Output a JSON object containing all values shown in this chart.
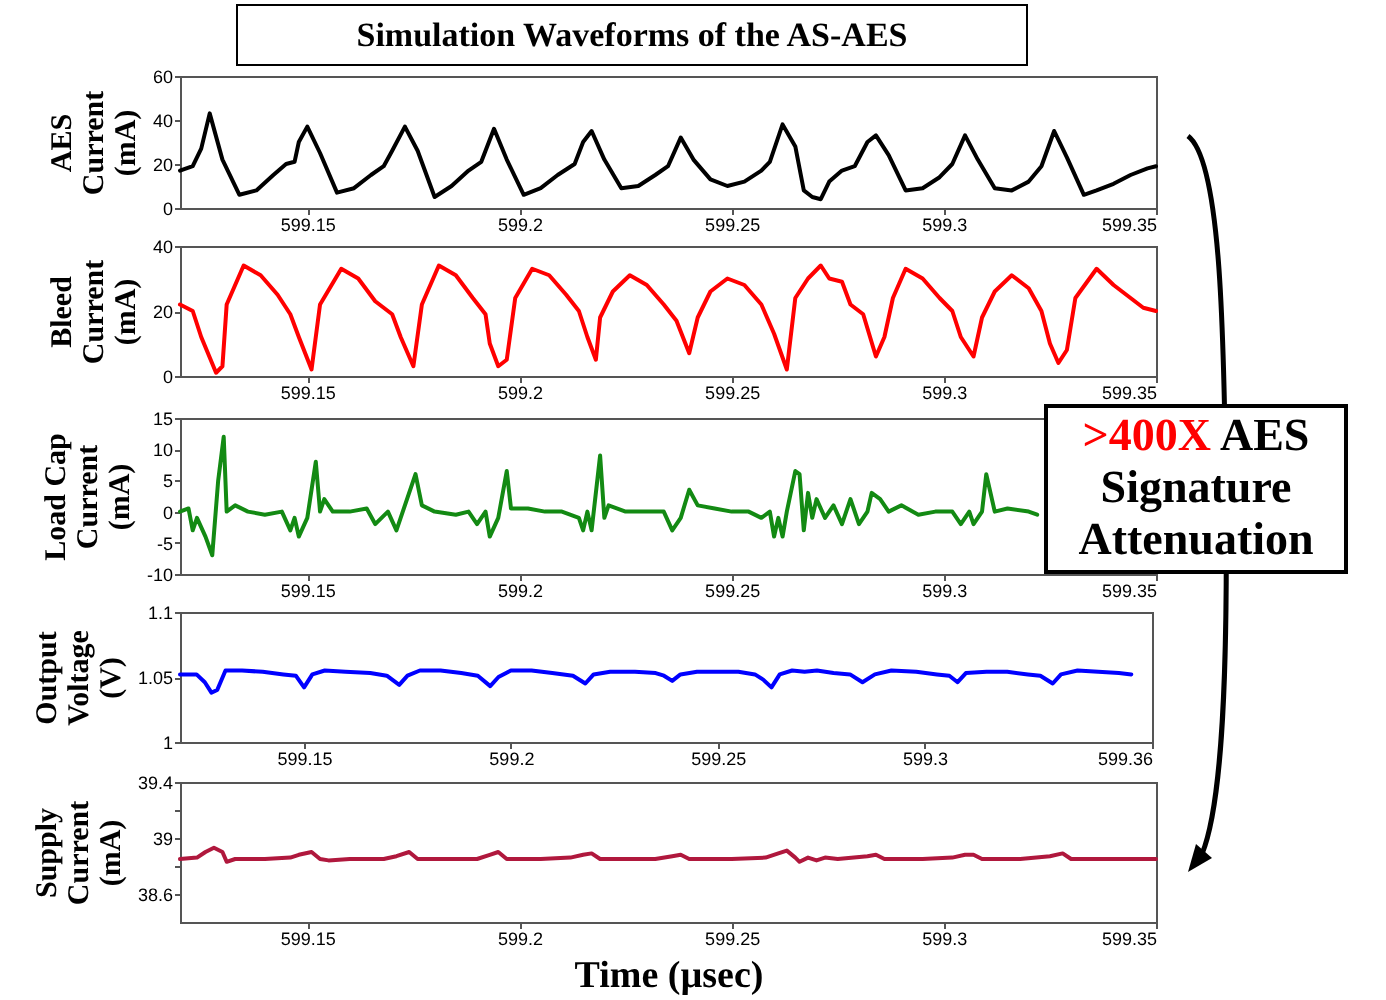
{
  "chart_data": [
    {
      "type": "line",
      "title": "Simulation Waveforms of the AS-AES",
      "annotations": [
        ">400X AES Signature Attenuation"
      ],
      "ylabel": "AES\nCurrent\n(mA)",
      "xlim": [
        599.12,
        599.35
      ],
      "xticks": [
        599.15,
        599.2,
        599.25,
        599.3,
        599.35
      ],
      "ylim": [
        0,
        60
      ],
      "yticks": [
        0,
        20,
        40,
        60
      ],
      "series": [
        {
          "color": "#000000",
          "x": [
            599.12,
            599.123,
            599.125,
            599.127,
            599.13,
            599.134,
            599.138,
            599.142,
            599.145,
            599.147,
            599.148,
            599.15,
            599.153,
            599.157,
            599.161,
            599.165,
            599.168,
            599.17,
            599.173,
            599.176,
            599.18,
            599.184,
            599.188,
            599.191,
            599.194,
            599.197,
            599.201,
            599.205,
            599.209,
            599.213,
            599.215,
            599.217,
            599.22,
            599.224,
            599.228,
            599.232,
            599.235,
            599.238,
            599.241,
            599.245,
            599.249,
            599.253,
            599.257,
            599.259,
            599.262,
            599.265,
            599.267,
            599.269,
            599.271,
            599.273,
            599.276,
            599.279,
            599.282,
            599.284,
            599.287,
            599.291,
            599.295,
            599.299,
            599.302,
            599.305,
            599.308,
            599.312,
            599.316,
            599.32,
            599.323,
            599.326,
            599.329,
            599.333,
            599.336,
            599.34,
            599.344,
            599.348,
            599.35
          ],
          "values": [
            17,
            19,
            27,
            43,
            22,
            6,
            8,
            15,
            20,
            21,
            30,
            37,
            25,
            7,
            9,
            15,
            19,
            26,
            37,
            26,
            5,
            10,
            17,
            21,
            36,
            22,
            6,
            9,
            15,
            20,
            30,
            35,
            22,
            9,
            10,
            15,
            19,
            32,
            22,
            13,
            10,
            12,
            17,
            21,
            38,
            28,
            8,
            5,
            4,
            12,
            17,
            19,
            30,
            33,
            24,
            8,
            9,
            14,
            20,
            33,
            22,
            9,
            8,
            12,
            19,
            35,
            23,
            6,
            8,
            11,
            15,
            18,
            19
          ]
        }
      ]
    },
    {
      "type": "line",
      "ylabel": "Bleed\nCurrent\n(mA)",
      "xlim": [
        599.12,
        599.35
      ],
      "xticks": [
        599.15,
        599.2,
        599.25,
        599.3,
        599.35
      ],
      "ylim": [
        0,
        40
      ],
      "yticks": [
        0,
        20,
        40
      ],
      "series": [
        {
          "color": "#ff0000",
          "x": [
            599.12,
            599.123,
            599.125,
            599.1285,
            599.13,
            599.131,
            599.135,
            599.139,
            599.143,
            599.146,
            599.148,
            599.151,
            599.153,
            599.158,
            599.162,
            599.166,
            599.17,
            599.172,
            599.175,
            599.177,
            599.181,
            599.185,
            599.189,
            599.192,
            599.193,
            599.195,
            599.197,
            599.199,
            599.203,
            599.207,
            599.211,
            599.214,
            599.216,
            599.218,
            599.219,
            599.222,
            599.226,
            599.23,
            599.234,
            599.237,
            599.24,
            599.242,
            599.245,
            599.249,
            599.253,
            599.257,
            599.26,
            599.263,
            599.265,
            599.268,
            599.271,
            599.273,
            599.276,
            599.278,
            599.281,
            599.284,
            599.286,
            599.288,
            599.291,
            599.295,
            599.299,
            599.302,
            599.304,
            599.307,
            599.309,
            599.312,
            599.316,
            599.32,
            599.323,
            599.325,
            599.327,
            599.329,
            599.331,
            599.336,
            599.34,
            599.344,
            599.347,
            599.35
          ],
          "values": [
            22,
            20,
            12,
            1,
            3,
            22,
            34,
            31,
            25,
            19,
            12,
            2,
            22,
            33,
            30,
            23,
            19,
            12,
            3,
            22,
            34,
            31,
            24,
            19,
            10,
            3,
            5,
            24,
            33,
            31,
            25,
            20,
            12,
            5,
            18,
            26,
            31,
            28,
            22,
            17,
            7,
            18,
            26,
            30,
            28,
            22,
            13,
            2,
            24,
            30,
            34,
            30,
            29,
            22,
            19,
            6,
            12,
            24,
            33,
            30,
            24,
            20,
            12,
            6,
            18,
            26,
            31,
            27,
            20,
            10,
            4,
            8,
            24,
            33,
            28,
            24,
            21,
            20
          ]
        }
      ]
    },
    {
      "type": "line",
      "ylabel": "Load Cap\nCurrent\n(mA)",
      "xlim": [
        599.12,
        599.35
      ],
      "xticks": [
        599.15,
        599.2,
        599.25,
        599.3,
        599.35
      ],
      "ylim": [
        -10,
        15
      ],
      "yticks": [
        -10,
        -5,
        0,
        5,
        10,
        15
      ],
      "series": [
        {
          "color": "#138a13",
          "x": [
            599.12,
            599.122,
            599.123,
            599.124,
            599.126,
            599.1276,
            599.129,
            599.1303,
            599.131,
            599.133,
            599.136,
            599.14,
            599.144,
            599.146,
            599.147,
            599.148,
            599.15,
            599.152,
            599.153,
            599.154,
            599.156,
            599.16,
            599.164,
            599.166,
            599.169,
            599.171,
            599.1755,
            599.177,
            599.18,
            599.185,
            599.188,
            599.19,
            599.192,
            599.193,
            599.195,
            599.197,
            599.198,
            599.202,
            599.206,
            599.21,
            599.214,
            599.215,
            599.216,
            599.217,
            599.219,
            599.22,
            599.221,
            599.225,
            599.23,
            599.234,
            599.236,
            599.238,
            599.24,
            599.242,
            599.246,
            599.25,
            599.254,
            599.257,
            599.259,
            599.26,
            599.261,
            599.262,
            599.263,
            599.265,
            599.266,
            599.267,
            599.268,
            599.269,
            599.27,
            599.272,
            599.274,
            599.276,
            599.278,
            599.28,
            599.282,
            599.283,
            599.285,
            599.287,
            599.29,
            599.294,
            599.298,
            599.302,
            599.304,
            599.306,
            599.307,
            599.309,
            599.31,
            599.312,
            599.315,
            599.32,
            599.322
          ],
          "values": [
            0,
            0.5,
            -3,
            -1,
            -4,
            -7,
            5,
            12,
            0,
            1,
            0,
            -0.5,
            0,
            -3,
            -1,
            -4,
            -1,
            8,
            0,
            2,
            0,
            0,
            0.5,
            -2,
            0,
            -3,
            6,
            1,
            0,
            -0.5,
            0,
            -2,
            0,
            -4,
            -1,
            6.5,
            0.5,
            0.5,
            0,
            0,
            -1,
            -3,
            0,
            -3,
            9,
            -1,
            1,
            0,
            0,
            0,
            -3,
            -1,
            3.5,
            1,
            0.5,
            0,
            0,
            -1,
            0,
            -4,
            -1,
            -4,
            0,
            6.5,
            6,
            -3,
            3,
            -1,
            2,
            -1,
            1,
            -2,
            2,
            -2,
            0,
            3,
            2,
            0,
            1,
            -0.5,
            0,
            0,
            -2,
            0,
            -2,
            0,
            6,
            0,
            0.5,
            0,
            -0.5
          ]
        }
      ]
    },
    {
      "type": "line",
      "ylabel": "Output\nVoltage\n(V)",
      "xlim": [
        599.12,
        599.355
      ],
      "xticks": [
        599.15,
        599.2,
        599.25,
        599.3,
        {
          "value": 599.355,
          "label": "599.36"
        }
      ],
      "ylim": [
        1,
        1.1
      ],
      "yticks": [
        1,
        1.05,
        1.1
      ],
      "series": [
        {
          "color": "#0000ff",
          "x": [
            599.12,
            599.124,
            599.126,
            599.1276,
            599.129,
            599.131,
            599.135,
            599.14,
            599.145,
            599.148,
            599.15,
            599.152,
            599.155,
            599.16,
            599.166,
            599.17,
            599.173,
            599.175,
            599.178,
            599.183,
            599.188,
            599.192,
            599.195,
            599.197,
            599.2,
            599.205,
            599.21,
            599.215,
            599.218,
            599.22,
            599.224,
            599.23,
            599.235,
            599.237,
            599.239,
            599.241,
            599.245,
            599.25,
            599.255,
            599.259,
            599.261,
            599.263,
            599.265,
            599.268,
            599.271,
            599.274,
            599.278,
            599.282,
            599.285,
            599.288,
            599.292,
            599.298,
            599.303,
            599.306,
            599.308,
            599.31,
            599.315,
            599.32,
            599.325,
            599.328,
            599.331,
            599.333,
            599.337,
            599.342,
            599.347,
            599.35
          ],
          "values": [
            1.052,
            1.052,
            1.046,
            1.038,
            1.04,
            1.055,
            1.055,
            1.054,
            1.052,
            1.051,
            1.042,
            1.052,
            1.055,
            1.054,
            1.053,
            1.051,
            1.044,
            1.051,
            1.055,
            1.055,
            1.053,
            1.051,
            1.043,
            1.05,
            1.055,
            1.055,
            1.053,
            1.051,
            1.045,
            1.052,
            1.054,
            1.054,
            1.053,
            1.051,
            1.047,
            1.052,
            1.054,
            1.054,
            1.054,
            1.052,
            1.048,
            1.042,
            1.052,
            1.055,
            1.054,
            1.055,
            1.053,
            1.052,
            1.046,
            1.052,
            1.055,
            1.054,
            1.052,
            1.051,
            1.046,
            1.053,
            1.054,
            1.054,
            1.052,
            1.051,
            1.045,
            1.052,
            1.055,
            1.054,
            1.053,
            1.052
          ]
        }
      ]
    },
    {
      "type": "line",
      "ylabel": "Supply\nCurrent\n(mA)",
      "xlabel": "Time (µsec)",
      "xlim": [
        599.12,
        599.35
      ],
      "xticks": [
        599.15,
        599.2,
        599.25,
        599.3,
        599.35
      ],
      "ylim": [
        38.4,
        39.4
      ],
      "yticks": [
        38.6,
        {
          "value": 38.8,
          "label": null
        },
        39,
        {
          "value": 39.2,
          "label": null
        },
        39.4
      ],
      "series": [
        {
          "color": "#b0183d",
          "x": [
            599.12,
            599.124,
            599.126,
            599.128,
            599.13,
            599.131,
            599.133,
            599.14,
            599.146,
            599.148,
            599.151,
            599.153,
            599.155,
            599.16,
            599.168,
            599.171,
            599.174,
            599.176,
            599.182,
            599.19,
            599.193,
            599.195,
            599.197,
            599.205,
            599.212,
            599.215,
            599.217,
            599.219,
            599.225,
            599.232,
            599.236,
            599.238,
            599.24,
            599.25,
            599.258,
            599.261,
            599.263,
            599.265,
            599.266,
            599.268,
            599.27,
            599.272,
            599.275,
            599.282,
            599.284,
            599.286,
            599.295,
            599.302,
            599.305,
            599.307,
            599.309,
            599.318,
            599.325,
            599.328,
            599.33,
            599.34,
            599.35
          ],
          "values": [
            38.85,
            38.86,
            38.9,
            38.93,
            38.9,
            38.83,
            38.85,
            38.85,
            38.86,
            38.88,
            38.9,
            38.85,
            38.84,
            38.85,
            38.85,
            38.87,
            38.9,
            38.85,
            38.85,
            38.85,
            38.88,
            38.9,
            38.85,
            38.85,
            38.86,
            38.88,
            38.89,
            38.85,
            38.85,
            38.85,
            38.87,
            38.88,
            38.85,
            38.85,
            38.86,
            38.89,
            38.91,
            38.86,
            38.83,
            38.86,
            38.84,
            38.86,
            38.85,
            38.87,
            38.88,
            38.85,
            38.85,
            38.86,
            38.88,
            38.88,
            38.85,
            38.85,
            38.87,
            38.89,
            38.85,
            38.85,
            38.85
          ]
        }
      ]
    }
  ]
}
